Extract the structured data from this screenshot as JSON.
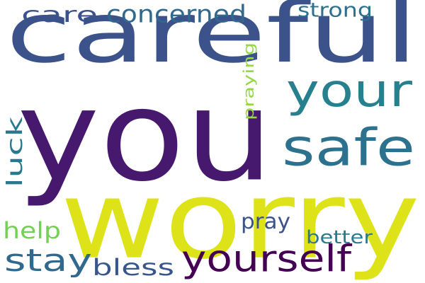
{
  "words": [
    {
      "text": "careful",
      "color": "#3b528b",
      "orientation": "horizontal"
    },
    {
      "text": "you",
      "color": "#46186e",
      "orientation": "horizontal"
    },
    {
      "text": "worry",
      "color": "#dde318",
      "orientation": "horizontal"
    },
    {
      "text": "your",
      "color": "#27808e",
      "orientation": "horizontal"
    },
    {
      "text": "safe",
      "color": "#2c728e",
      "orientation": "horizontal"
    },
    {
      "text": "yourself",
      "color": "#440154",
      "orientation": "horizontal"
    },
    {
      "text": "stay",
      "color": "#31688e",
      "orientation": "horizontal"
    },
    {
      "text": "bless",
      "color": "#39568c",
      "orientation": "horizontal"
    },
    {
      "text": "concerned",
      "color": "#31688e",
      "orientation": "horizontal"
    },
    {
      "text": "care",
      "color": "#3b528b",
      "orientation": "horizontal"
    },
    {
      "text": "strong",
      "color": "#2c728e",
      "orientation": "horizontal"
    },
    {
      "text": "praying",
      "color": "#95d840",
      "orientation": "vertical"
    },
    {
      "text": "luck",
      "color": "#2a788e",
      "orientation": "vertical"
    },
    {
      "text": "help",
      "color": "#73d055",
      "orientation": "horizontal"
    },
    {
      "text": "pray",
      "color": "#3b528b",
      "orientation": "horizontal"
    },
    {
      "text": "better",
      "color": "#2a788e",
      "orientation": "horizontal"
    }
  ]
}
